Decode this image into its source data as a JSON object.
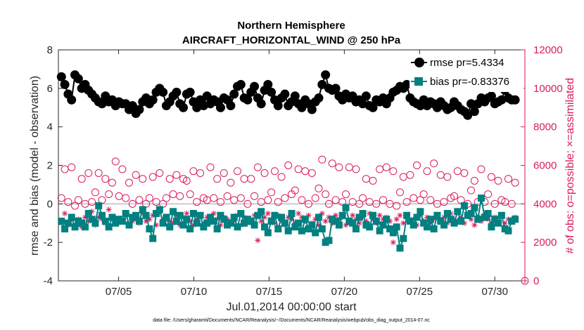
{
  "chart_data": {
    "type": "line",
    "title_line1": "Northern Hemisphere",
    "title_line2": "AIRCRAFT_HORIZONTAL_WIND @ 250 hPa",
    "xlabel": "Jul.01,2014 00:00:00 start",
    "ylabel": "rmse and bias (model - observation)",
    "ylabel_right": "# of obs: o=possible; ×=assimilated",
    "footnote": "data file: /Users/gharamti/Documents/NCAR/Reanalysis/~/Documents/NCAR/Reanalysis/webpub/obs_diag_output_2014-07.nc",
    "xlim": [
      1,
      32
    ],
    "ylim": [
      -4,
      8
    ],
    "ylim_right": [
      0,
      12000
    ],
    "x_ticks": [
      5,
      10,
      15,
      20,
      25,
      30
    ],
    "x_tick_labels": [
      "07/05",
      "07/10",
      "07/15",
      "07/20",
      "07/25",
      "07/30"
    ],
    "y_ticks": [
      "-4",
      "-2",
      "0",
      "2",
      "4",
      "6",
      "8"
    ],
    "y_tick_values": [
      -4,
      -2,
      0,
      2,
      4,
      6,
      8
    ],
    "y_right_ticks": [
      "0",
      "2000",
      "4000",
      "6000",
      "8000",
      "10000",
      "12000"
    ],
    "y_right_tick_values": [
      0,
      2000,
      4000,
      6000,
      8000,
      10000,
      12000
    ],
    "legend_position": "top-right",
    "colors": {
      "rmse": "#000000",
      "bias": "#008080",
      "obs": "#d81b60",
      "zero": "#bdbdbd"
    },
    "series": [
      {
        "name": "rmse",
        "label": "rmse pr=5.4334",
        "values": [
          6.6,
          6.2,
          5.7,
          5.4,
          6.7,
          6.5,
          6.0,
          6.2,
          5.9,
          5.7,
          5.5,
          5.3,
          5.2,
          5.6,
          5.3,
          5.4,
          5.1,
          5.3,
          5.2,
          5.2,
          4.9,
          5.1,
          4.7,
          4.9,
          5.3,
          5.5,
          5.2,
          5.4,
          5.8,
          6.0,
          5.8,
          5.1,
          5.3,
          5.6,
          5.8,
          5.2,
          5.0,
          5.7,
          5.8,
          5.3,
          5.0,
          5.4,
          5.1,
          5.6,
          5.2,
          5.4,
          5.3,
          5.0,
          5.5,
          5.4,
          5.1,
          5.7,
          6.1,
          6.2,
          5.5,
          5.4,
          5.8,
          6.1,
          5.5,
          5.2,
          5.9,
          6.2,
          5.8,
          5.4,
          5.1,
          5.5,
          5.7,
          5.1,
          5.3,
          5.6,
          5.2,
          5.0,
          5.4,
          5.2,
          4.9,
          5.3,
          5.5,
          6.2,
          6.7,
          6.0,
          5.9,
          6.0,
          5.6,
          5.4,
          5.7,
          5.5,
          5.6,
          5.3,
          5.4,
          5.2,
          5.6,
          5.1,
          5.0,
          5.4,
          5.3,
          5.5,
          5.2,
          5.5,
          5.8,
          5.9,
          6.1,
          6.0,
          6.2,
          5.5,
          5.3,
          5.2,
          5.1,
          5.4,
          5.1,
          5.3,
          5.2,
          5.0,
          5.3,
          5.1,
          4.9,
          5.0,
          5.3,
          5.1,
          4.9,
          4.8,
          4.6,
          5.2,
          4.8,
          5.2,
          5.5,
          5.3,
          5.5,
          5.6,
          5.2,
          5.3,
          5.4,
          5.9,
          5.5,
          5.4,
          5.4
        ]
      },
      {
        "name": "bias",
        "label": "bias pr=-0.83376",
        "values": [
          -0.9,
          -1.3,
          -1.0,
          -0.7,
          -1.2,
          -0.9,
          -1.0,
          -1.2,
          -0.5,
          -0.8,
          -1.0,
          -0.1,
          -0.6,
          -0.9,
          -1.2,
          -0.7,
          -1.0,
          -0.8,
          -0.9,
          -0.5,
          -1.1,
          -0.7,
          -0.6,
          -0.9,
          -0.3,
          -0.6,
          -1.3,
          -1.8,
          -0.5,
          -0.3,
          -1.0,
          -0.7,
          -1.2,
          -0.4,
          -0.9,
          -0.6,
          -1.1,
          -0.8,
          -1.3,
          -0.5,
          -1.0,
          -0.6,
          -1.2,
          -1.0,
          -0.7,
          -0.9,
          -1.3,
          -0.6,
          -0.8,
          -1.1,
          -1.0,
          -0.7,
          -1.2,
          -0.5,
          -1.0,
          -0.8,
          -0.9,
          -1.1,
          -0.6,
          -0.4,
          -1.2,
          -1.5,
          -0.9,
          -0.6,
          -1.3,
          -0.7,
          -1.0,
          -1.4,
          -0.5,
          -1.2,
          -1.0,
          -1.4,
          -0.8,
          -1.3,
          -1.1,
          -1.5,
          -0.7,
          -1.3,
          -2.0,
          -1.9,
          -0.8,
          -0.9,
          -1.1,
          -0.6,
          -0.2,
          -0.9,
          -1.0,
          -1.3,
          -0.7,
          -0.5,
          -1.1,
          -1.2,
          -0.6,
          -0.9,
          -1.4,
          -1.1,
          -0.8,
          -1.3,
          -1.5,
          -1.2,
          -2.3,
          -1.8,
          -0.6,
          -0.9,
          -1.1,
          -0.7,
          -0.4,
          -1.0,
          -1.2,
          -0.8,
          -1.3,
          -0.6,
          -0.9,
          -1.1,
          -0.5,
          -0.8,
          -1.0,
          -0.4,
          -0.9,
          -0.1,
          -0.6,
          -0.5,
          -0.2,
          -0.8,
          0.3,
          -0.7,
          -0.5,
          -1.2,
          -0.8,
          -1.0,
          -0.6,
          -1.3,
          -1.4,
          -0.9,
          -0.8
        ]
      },
      {
        "name": "possible",
        "label": "o=possible",
        "values": [
          4300,
          5800,
          4100,
          5900,
          3900,
          4200,
          5300,
          4000,
          5600,
          4100,
          4600,
          5600,
          4200,
          5300,
          4500,
          5100,
          6200,
          4400,
          5800,
          4300,
          5100,
          4000,
          5500,
          4200,
          5300,
          4000,
          4300,
          5400,
          4100,
          5600,
          4000,
          4300,
          5300,
          4500,
          5500,
          4400,
          5300,
          5200,
          4500,
          5700,
          4100,
          5600,
          4300,
          4200,
          5900,
          4300,
          5300,
          4100,
          5600,
          4400,
          5100,
          4200,
          5700,
          4300,
          5300,
          4000,
          5300,
          4400,
          5900,
          4100,
          5600,
          4200,
          4600,
          5700,
          4100,
          5400,
          4300,
          6000,
          4500,
          4700,
          5800,
          4200,
          5700,
          4000,
          5600,
          4300,
          4800,
          6300,
          4500,
          4000,
          6100,
          4200,
          5900,
          4100,
          4500,
          5900,
          4100,
          5800,
          4000,
          4300,
          5300,
          4100,
          5200,
          4000,
          5800,
          4200,
          5900,
          4000,
          5700,
          3900,
          4600,
          5400,
          4100,
          5500,
          4300,
          6000,
          4200,
          4500,
          5700,
          4200,
          6100,
          4000,
          5500,
          4100,
          5400,
          4300,
          4400,
          5700,
          4200,
          5600,
          4000,
          4700,
          5200,
          4100,
          5800,
          4100,
          4500,
          5400,
          4000,
          5200,
          4200,
          4100,
          5300,
          4000,
          5100
        ]
      },
      {
        "name": "assimilated",
        "label": "×=assimilated",
        "values": [
          3000,
          3500,
          2900,
          3200,
          2900,
          3200,
          2800,
          3300,
          3100,
          3600,
          2900,
          3300,
          3200,
          3000,
          3700,
          3300,
          3000,
          3200,
          3100,
          3400,
          2900,
          3100,
          3300,
          3000,
          3500,
          3100,
          3200,
          3400,
          2900,
          3600,
          3200,
          3300,
          3100,
          3000,
          3400,
          2900,
          3300,
          3500,
          3100,
          2900,
          3200,
          3400,
          3000,
          3300,
          3100,
          3500,
          3200,
          2900,
          3300,
          3200,
          3000,
          3100,
          3400,
          2900,
          3300,
          3200,
          3000,
          3400,
          2100,
          3100,
          3300,
          3500,
          3200,
          3000,
          3400,
          3100,
          2900,
          3300,
          3200,
          3000,
          3500,
          3300,
          3100,
          3400,
          3000,
          3200,
          2900,
          3500,
          3100,
          3300,
          3000,
          3400,
          3200,
          3300,
          2900,
          3100,
          3400,
          3200,
          3000,
          3300,
          3100,
          3500,
          3200,
          3000,
          3400,
          3200,
          3300,
          3100,
          2000,
          3200,
          3400,
          3000,
          3300,
          3100,
          3200,
          2900,
          3400,
          3100,
          3300,
          3000,
          3200,
          3400,
          3100,
          3300,
          3000,
          3500,
          3200,
          3100,
          3300,
          3000,
          3400,
          3200,
          2900,
          3300,
          3100,
          3400,
          3200,
          3000,
          3300,
          3100,
          3400,
          3000,
          3200,
          3100,
          3300
        ]
      }
    ],
    "zero_marker_label": "0"
  }
}
